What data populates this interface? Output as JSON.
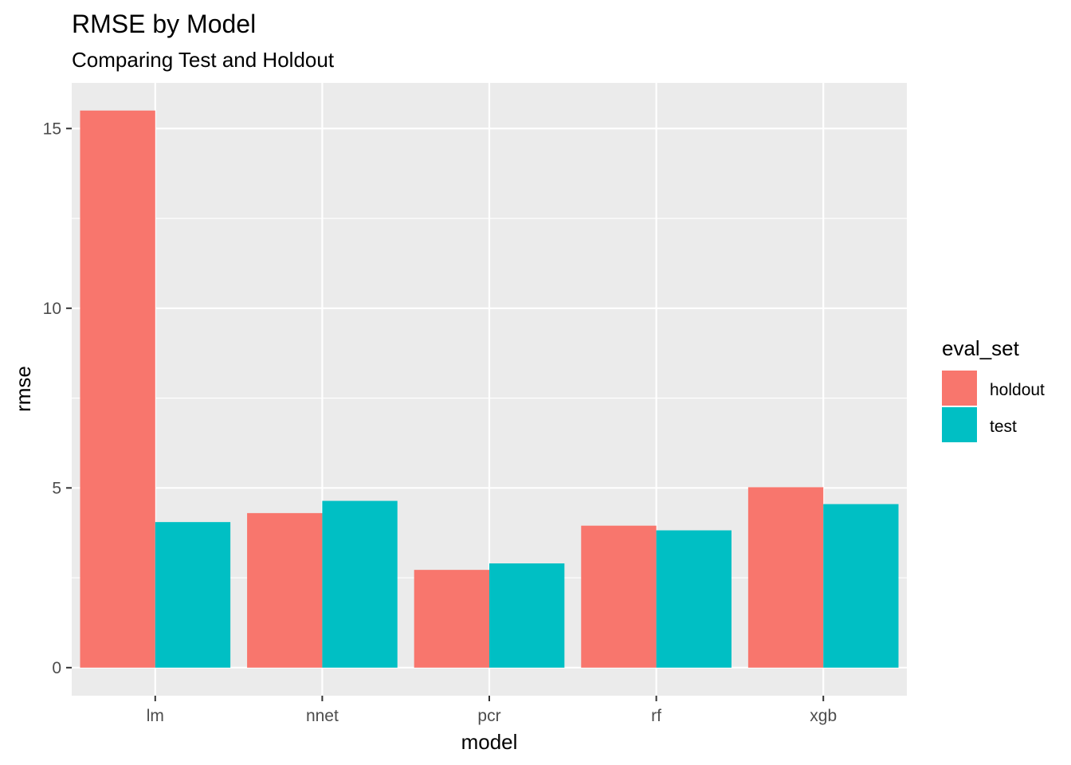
{
  "chart_data": {
    "type": "bar",
    "title": "RMSE by Model",
    "subtitle": "Comparing Test and Holdout",
    "xlabel": "model",
    "ylabel": "rmse",
    "categories": [
      "lm",
      "nnet",
      "pcr",
      "rf",
      "xgb"
    ],
    "series": [
      {
        "name": "holdout",
        "color": "#F8766D",
        "values": [
          15.5,
          4.3,
          2.72,
          3.95,
          5.02
        ]
      },
      {
        "name": "test",
        "color": "#00BFC4",
        "values": [
          4.05,
          4.64,
          2.9,
          3.82,
          4.55
        ]
      }
    ],
    "ylim": [
      -0.78,
      16.27
    ],
    "yticks": [
      0,
      5,
      10,
      15
    ],
    "grid": true,
    "legend": {
      "title": "eval_set",
      "position": "right"
    },
    "panel_background": "#EBEBEB",
    "grid_color": "#FFFFFF"
  }
}
